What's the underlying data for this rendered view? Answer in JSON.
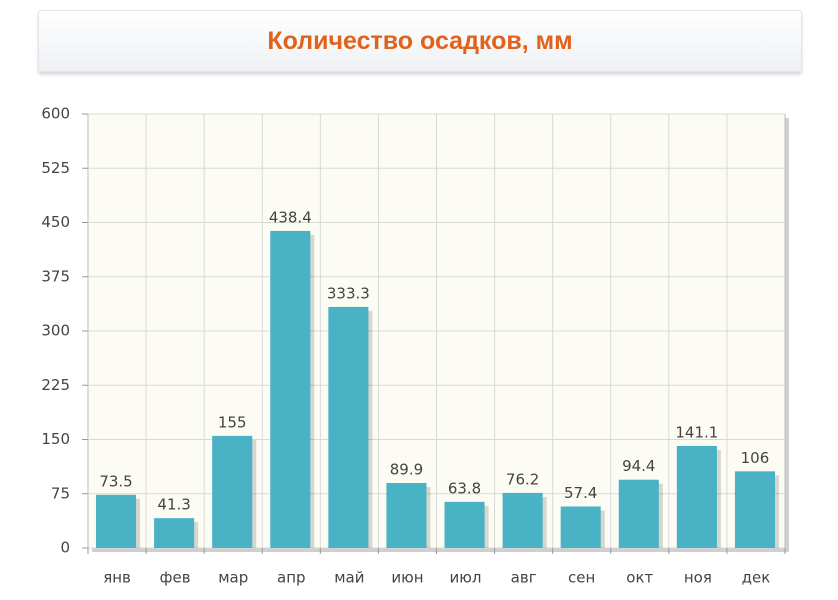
{
  "chart_data": {
    "type": "bar",
    "title": "Количество осадков, мм",
    "categories": [
      "янв",
      "фев",
      "мар",
      "апр",
      "май",
      "июн",
      "июл",
      "авг",
      "сен",
      "окт",
      "ноя",
      "дек"
    ],
    "values": [
      73.5,
      41.3,
      155,
      438.4,
      333.3,
      89.9,
      63.8,
      76.2,
      57.4,
      94.4,
      141.1,
      106
    ],
    "color": "#4ab2c5",
    "ylim": [
      0,
      600
    ],
    "yticks": [
      0,
      75,
      150,
      225,
      300,
      375,
      450,
      525,
      600
    ],
    "grid": true
  }
}
